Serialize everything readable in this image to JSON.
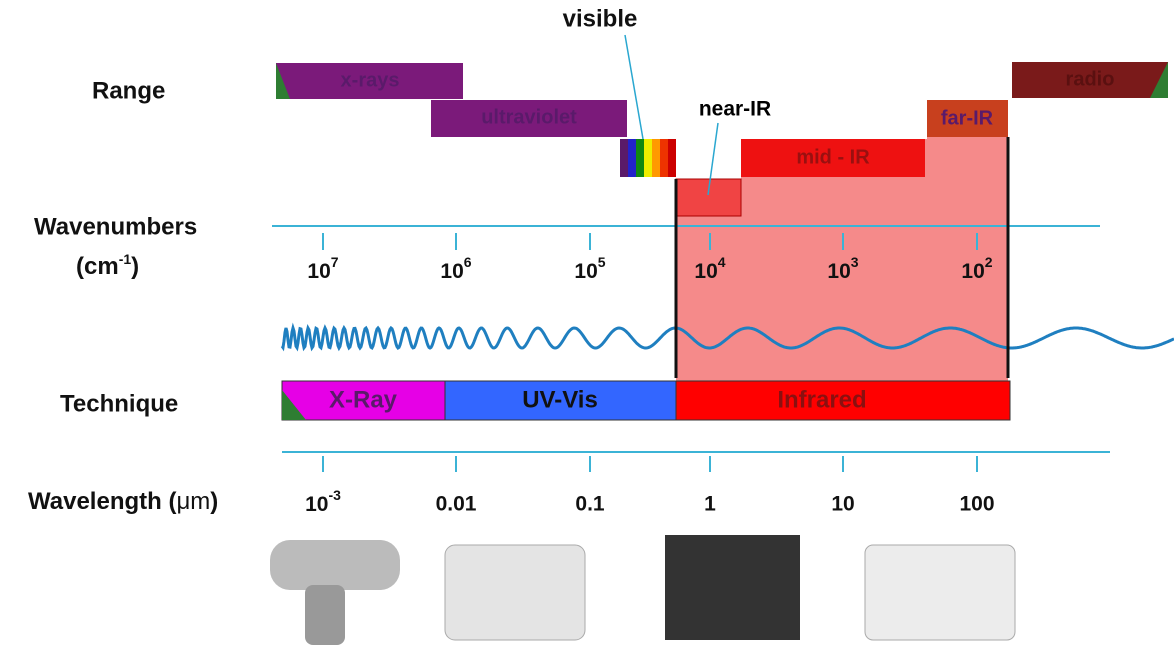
{
  "labels": {
    "range": "Range",
    "wavenumbers": "Wavenumbers",
    "wavenumber_unit": {
      "open": "(cm",
      "exp": "-1",
      "close": ")"
    },
    "technique": "Technique",
    "wavelength": "Wavelength (",
    "wavelength_unit": "μm",
    "wavelength_close": ")"
  },
  "annotations": {
    "visible": "visible",
    "near_ir": "near-IR"
  },
  "ranges": [
    "x-rays",
    "ultraviolet",
    "mid - IR",
    "far-IR",
    "radio"
  ],
  "wavenumber_ticks": [
    {
      "base": "10",
      "exp": "7"
    },
    {
      "base": "10",
      "exp": "6"
    },
    {
      "base": "10",
      "exp": "5"
    },
    {
      "base": "10",
      "exp": "4"
    },
    {
      "base": "10",
      "exp": "3"
    },
    {
      "base": "10",
      "exp": "2"
    }
  ],
  "techniques": [
    "X-Ray",
    "UV-Vis",
    "Infrared"
  ],
  "wavelength_ticks": [
    {
      "base": "10",
      "exp": "-3"
    },
    "0.01",
    "0.1",
    "1",
    "10",
    "100"
  ]
}
